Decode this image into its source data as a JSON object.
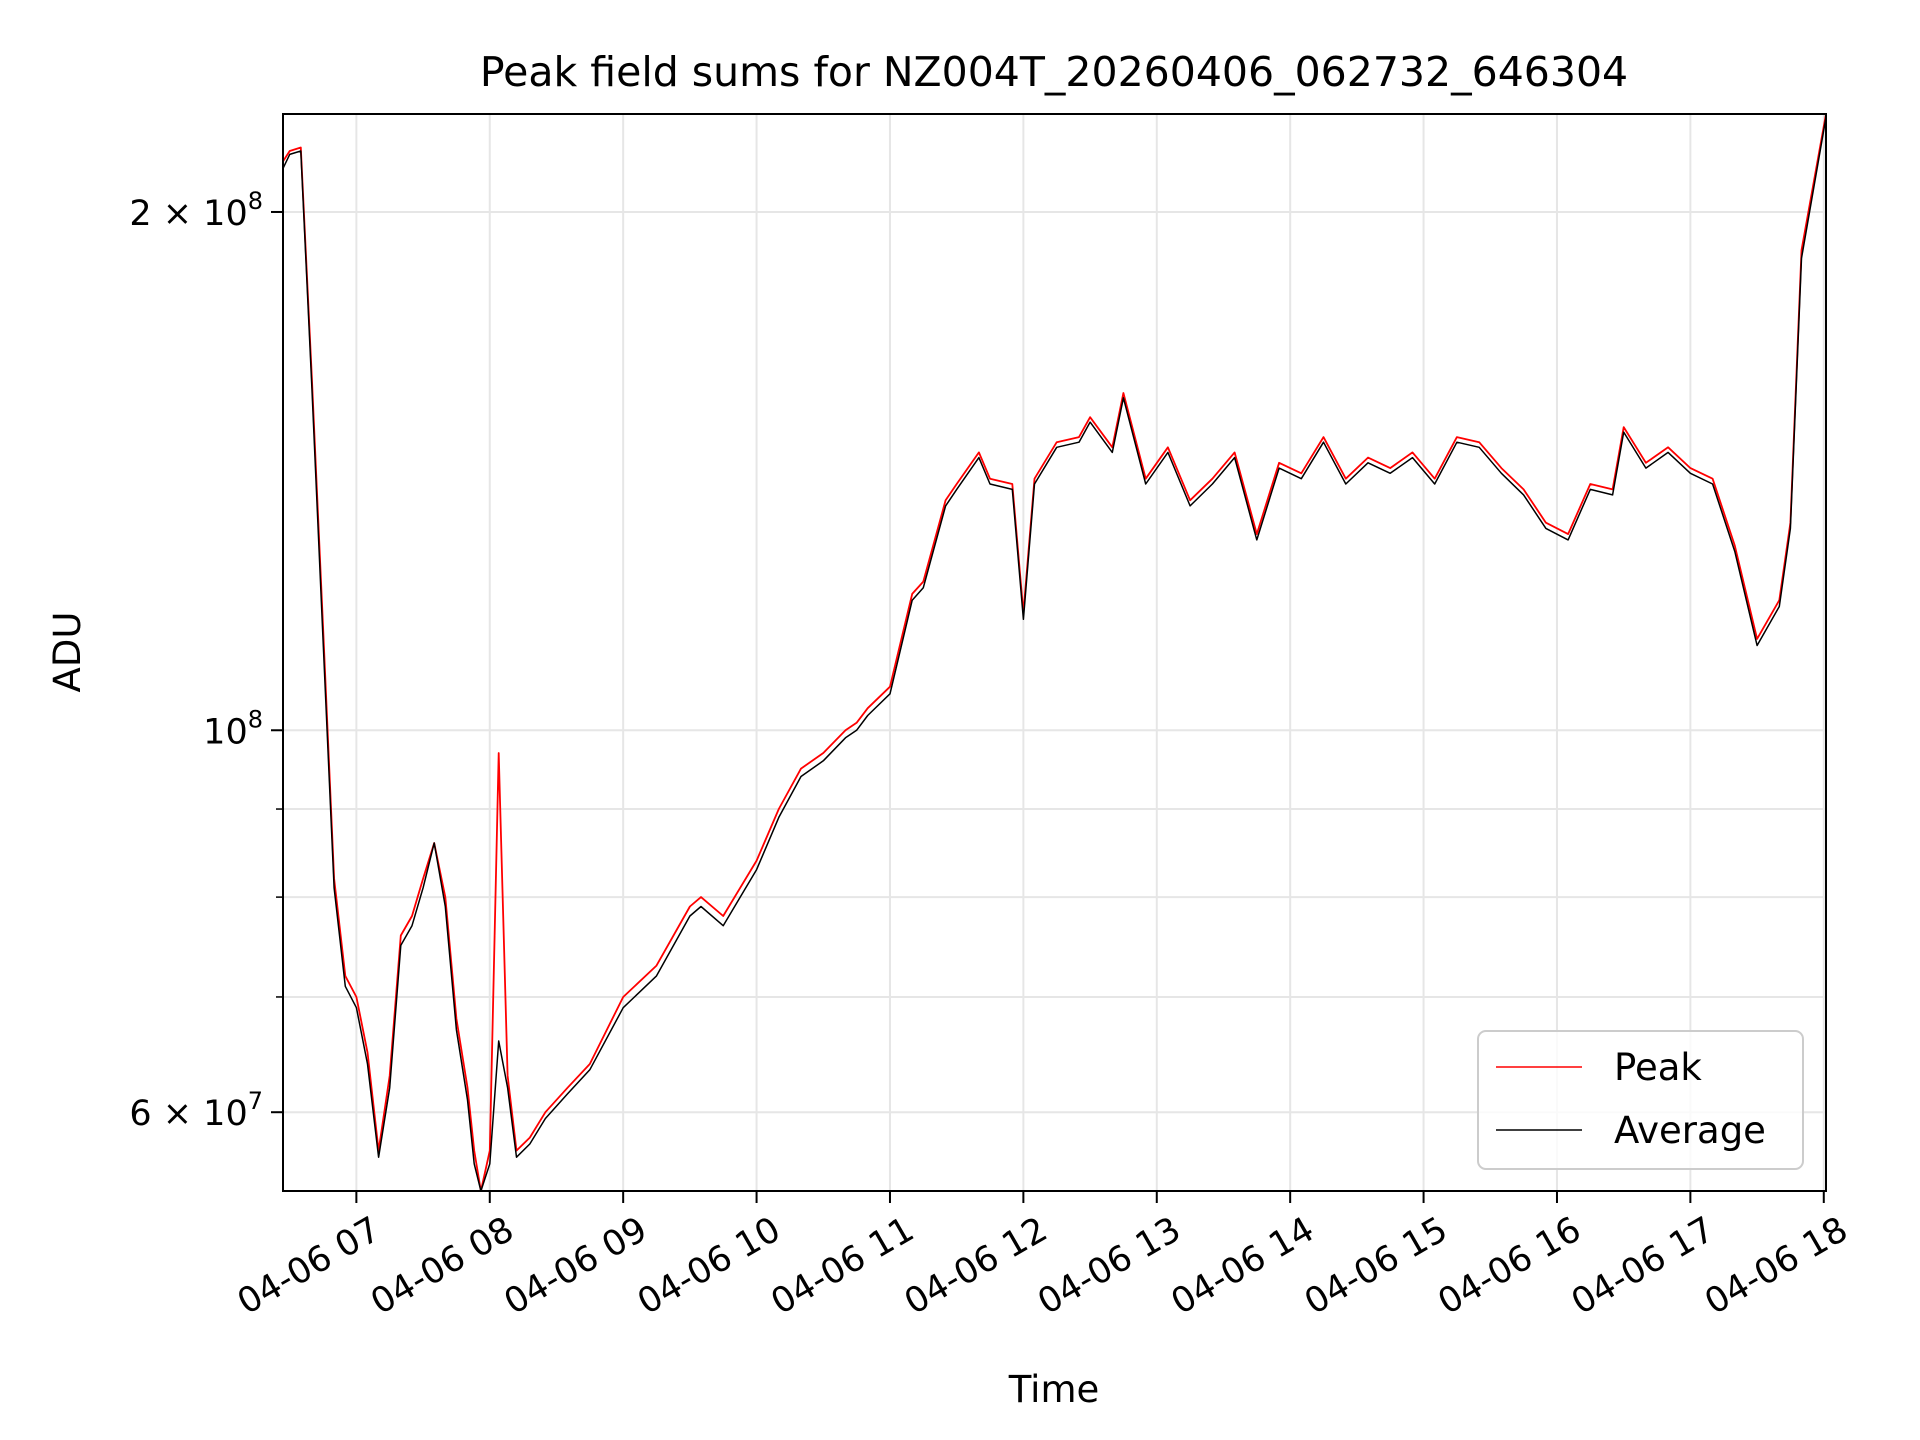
{
  "chart_data": {
    "type": "line",
    "title": "Peak field sums for NZ004T_20260406_062732_646304",
    "xlabel": "Time",
    "ylabel": "ADU",
    "y_scale": "log",
    "x_range": [
      "04-06 06:27",
      "04-06 18:01"
    ],
    "y_range": [
      54000000,
      228000000
    ],
    "grid": true,
    "legend_placement": "lower-right",
    "x_ticks": [
      "04-06 07",
      "04-06 08",
      "04-06 09",
      "04-06 10",
      "04-06 11",
      "04-06 12",
      "04-06 13",
      "04-06 14",
      "04-06 15",
      "04-06 16",
      "04-06 17",
      "04-06 18"
    ],
    "y_ticks": [
      {
        "value": 200000000,
        "mantissa": "2",
        "exponent": "8"
      },
      {
        "value": 100000000,
        "mantissa": "",
        "exponent": "8"
      },
      {
        "value": 60000000,
        "mantissa": "6",
        "exponent": "7"
      }
    ],
    "x": [
      "06:27",
      "06:30",
      "06:35",
      "06:40",
      "06:45",
      "06:50",
      "06:55",
      "07:00",
      "07:05",
      "07:10",
      "07:15",
      "07:20",
      "07:25",
      "07:30",
      "07:35",
      "07:40",
      "07:45",
      "07:50",
      "07:53",
      "07:56",
      "08:00",
      "08:04",
      "08:08",
      "08:12",
      "08:18",
      "08:25",
      "08:35",
      "08:45",
      "09:00",
      "09:15",
      "09:30",
      "09:35",
      "09:45",
      "10:00",
      "10:10",
      "10:20",
      "10:30",
      "10:40",
      "10:45",
      "10:50",
      "11:00",
      "11:10",
      "11:15",
      "11:25",
      "11:30",
      "11:40",
      "11:45",
      "11:55",
      "12:00",
      "12:05",
      "12:15",
      "12:25",
      "12:30",
      "12:40",
      "12:45",
      "12:55",
      "13:05",
      "13:15",
      "13:25",
      "13:35",
      "13:45",
      "13:55",
      "14:05",
      "14:15",
      "14:25",
      "14:35",
      "14:45",
      "14:55",
      "15:05",
      "15:15",
      "15:25",
      "15:35",
      "15:45",
      "15:55",
      "16:05",
      "16:15",
      "16:25",
      "16:30",
      "16:40",
      "16:50",
      "17:00",
      "17:10",
      "17:20",
      "17:30",
      "17:40",
      "17:45",
      "17:50",
      "18:01"
    ],
    "series": [
      {
        "name": "Peak",
        "color": "#ff0000",
        "values": [
          214000000,
          217000000,
          218000000,
          160000000,
          115000000,
          82000000,
          72000000,
          70000000,
          65000000,
          57000000,
          63000000,
          76000000,
          78000000,
          82000000,
          86000000,
          80000000,
          68000000,
          62000000,
          57000000,
          54000000,
          57000000,
          97000000,
          63000000,
          57000000,
          58000000,
          60000000,
          62000000,
          64000000,
          70000000,
          73000000,
          79000000,
          80000000,
          78000000,
          84000000,
          90000000,
          95000000,
          97000000,
          100000000,
          101000000,
          103000000,
          106000000,
          120000000,
          122000000,
          136000000,
          139000000,
          145000000,
          140000000,
          139000000,
          117000000,
          140000000,
          147000000,
          148000000,
          152000000,
          146000000,
          157000000,
          140000000,
          146000000,
          136000000,
          140000000,
          145000000,
          130000000,
          143000000,
          141000000,
          148000000,
          140000000,
          144000000,
          142000000,
          145000000,
          140000000,
          148000000,
          147000000,
          142000000,
          138000000,
          132000000,
          130000000,
          139000000,
          138000000,
          150000000,
          143000000,
          146000000,
          142000000,
          140000000,
          128000000,
          113000000,
          119000000,
          132000000,
          190000000,
          228000000
        ]
      },
      {
        "name": "Average",
        "color": "#000000",
        "values": [
          212000000,
          216000000,
          217000000,
          158000000,
          113000000,
          81000000,
          71000000,
          69000000,
          64000000,
          56500000,
          62000000,
          75000000,
          77000000,
          81000000,
          86000000,
          79000000,
          67000000,
          61000000,
          56000000,
          53500000,
          56000000,
          66000000,
          62000000,
          56500000,
          57500000,
          59500000,
          61500000,
          63500000,
          69000000,
          72000000,
          78000000,
          79000000,
          77000000,
          83000000,
          89000000,
          94000000,
          96000000,
          99000000,
          100000000,
          102000000,
          105000000,
          119000000,
          121000000,
          135000000,
          138000000,
          144000000,
          139000000,
          138000000,
          116000000,
          139000000,
          146000000,
          147000000,
          151000000,
          145000000,
          156000000,
          139000000,
          145000000,
          135000000,
          139000000,
          144000000,
          129000000,
          142000000,
          140000000,
          147000000,
          139000000,
          143000000,
          141000000,
          144000000,
          139000000,
          147000000,
          146000000,
          141000000,
          137000000,
          131000000,
          129000000,
          138000000,
          137000000,
          149000000,
          142000000,
          145000000,
          141000000,
          139000000,
          127000000,
          112000000,
          118000000,
          131000000,
          188000000,
          227000000
        ]
      }
    ]
  }
}
